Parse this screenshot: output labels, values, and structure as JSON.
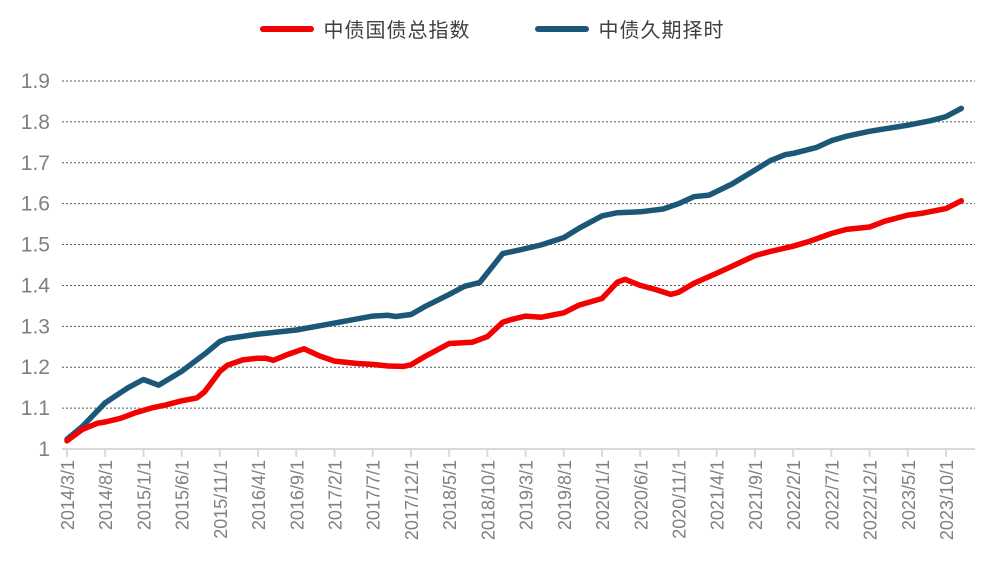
{
  "chart_data": {
    "type": "line",
    "title": "",
    "xlabel": "",
    "ylabel": "",
    "x_unit": "months since 2014/3",
    "x_range_months": [
      0,
      117
    ],
    "x_tick_interval_months": 5,
    "x_tick_labels": [
      "2014/3/1",
      "2014/8/1",
      "2015/1/1",
      "2015/6/1",
      "2015/11/1",
      "2016/4/1",
      "2016/9/1",
      "2017/2/1",
      "2017/7/1",
      "2017/12/1",
      "2018/5/1",
      "2018/10/1",
      "2019/3/1",
      "2019/8/1",
      "2020/1/1",
      "2020/6/1",
      "2020/11/1",
      "2021/4/1",
      "2021/9/1",
      "2022/2/1",
      "2022/7/1",
      "2022/12/1",
      "2023/5/1",
      "2023/10/1"
    ],
    "ylim": [
      1.0,
      1.9
    ],
    "y_tick_labels": [
      "1",
      "1.1",
      "1.2",
      "1.3",
      "1.4",
      "1.5",
      "1.6",
      "1.7",
      "1.8",
      "1.9"
    ],
    "grid": "horizontal-dotted",
    "legend_position": "top-center",
    "series": [
      {
        "name": "中债国债总指数",
        "color": "#f40000",
        "points": [
          [
            0,
            1.02
          ],
          [
            2,
            1.048
          ],
          [
            4,
            1.063
          ],
          [
            5,
            1.066
          ],
          [
            7,
            1.075
          ],
          [
            9,
            1.089
          ],
          [
            11,
            1.1
          ],
          [
            13,
            1.108
          ],
          [
            15,
            1.118
          ],
          [
            17,
            1.125
          ],
          [
            18,
            1.14
          ],
          [
            20,
            1.19
          ],
          [
            21,
            1.205
          ],
          [
            23,
            1.218
          ],
          [
            25,
            1.222
          ],
          [
            26,
            1.222
          ],
          [
            27,
            1.217
          ],
          [
            29,
            1.232
          ],
          [
            31,
            1.245
          ],
          [
            33,
            1.228
          ],
          [
            35,
            1.215
          ],
          [
            38,
            1.209
          ],
          [
            40,
            1.207
          ],
          [
            42,
            1.203
          ],
          [
            44,
            1.202
          ],
          [
            45,
            1.206
          ],
          [
            47,
            1.228
          ],
          [
            50,
            1.258
          ],
          [
            53,
            1.261
          ],
          [
            55,
            1.275
          ],
          [
            57,
            1.31
          ],
          [
            58,
            1.316
          ],
          [
            60,
            1.325
          ],
          [
            62,
            1.322
          ],
          [
            65,
            1.333
          ],
          [
            67,
            1.352
          ],
          [
            70,
            1.368
          ],
          [
            72,
            1.408
          ],
          [
            73,
            1.415
          ],
          [
            75,
            1.4
          ],
          [
            77,
            1.39
          ],
          [
            79,
            1.378
          ],
          [
            80,
            1.383
          ],
          [
            82,
            1.405
          ],
          [
            85,
            1.43
          ],
          [
            87,
            1.447
          ],
          [
            90,
            1.473
          ],
          [
            92,
            1.483
          ],
          [
            95,
            1.496
          ],
          [
            97,
            1.507
          ],
          [
            100,
            1.527
          ],
          [
            102,
            1.537
          ],
          [
            105,
            1.543
          ],
          [
            107,
            1.557
          ],
          [
            110,
            1.572
          ],
          [
            112,
            1.577
          ],
          [
            115,
            1.588
          ],
          [
            117,
            1.607
          ]
        ]
      },
      {
        "name": "中债久期择时",
        "color": "#1b5878",
        "points": [
          [
            0,
            1.024
          ],
          [
            2,
            1.055
          ],
          [
            5,
            1.113
          ],
          [
            8,
            1.15
          ],
          [
            10,
            1.17
          ],
          [
            12,
            1.156
          ],
          [
            15,
            1.19
          ],
          [
            18,
            1.232
          ],
          [
            20,
            1.263
          ],
          [
            21,
            1.27
          ],
          [
            25,
            1.281
          ],
          [
            30,
            1.291
          ],
          [
            35,
            1.308
          ],
          [
            40,
            1.325
          ],
          [
            42,
            1.327
          ],
          [
            43,
            1.324
          ],
          [
            45,
            1.329
          ],
          [
            47,
            1.35
          ],
          [
            50,
            1.378
          ],
          [
            52,
            1.398
          ],
          [
            54,
            1.407
          ],
          [
            57,
            1.478
          ],
          [
            59,
            1.486
          ],
          [
            62,
            1.499
          ],
          [
            65,
            1.517
          ],
          [
            67,
            1.54
          ],
          [
            70,
            1.57
          ],
          [
            72,
            1.578
          ],
          [
            75,
            1.58
          ],
          [
            78,
            1.587
          ],
          [
            80,
            1.6
          ],
          [
            82,
            1.617
          ],
          [
            84,
            1.621
          ],
          [
            87,
            1.648
          ],
          [
            90,
            1.682
          ],
          [
            92,
            1.705
          ],
          [
            94,
            1.72
          ],
          [
            95,
            1.723
          ],
          [
            98,
            1.737
          ],
          [
            100,
            1.754
          ],
          [
            102,
            1.765
          ],
          [
            105,
            1.777
          ],
          [
            108,
            1.786
          ],
          [
            110,
            1.792
          ],
          [
            113,
            1.803
          ],
          [
            115,
            1.813
          ],
          [
            117,
            1.833
          ]
        ]
      }
    ]
  },
  "colors": {
    "background": "#ffffff",
    "gridline": "#595959",
    "axis_line": "#d9d9d9",
    "axis_label": "#808080",
    "legend_text": "#404040"
  }
}
